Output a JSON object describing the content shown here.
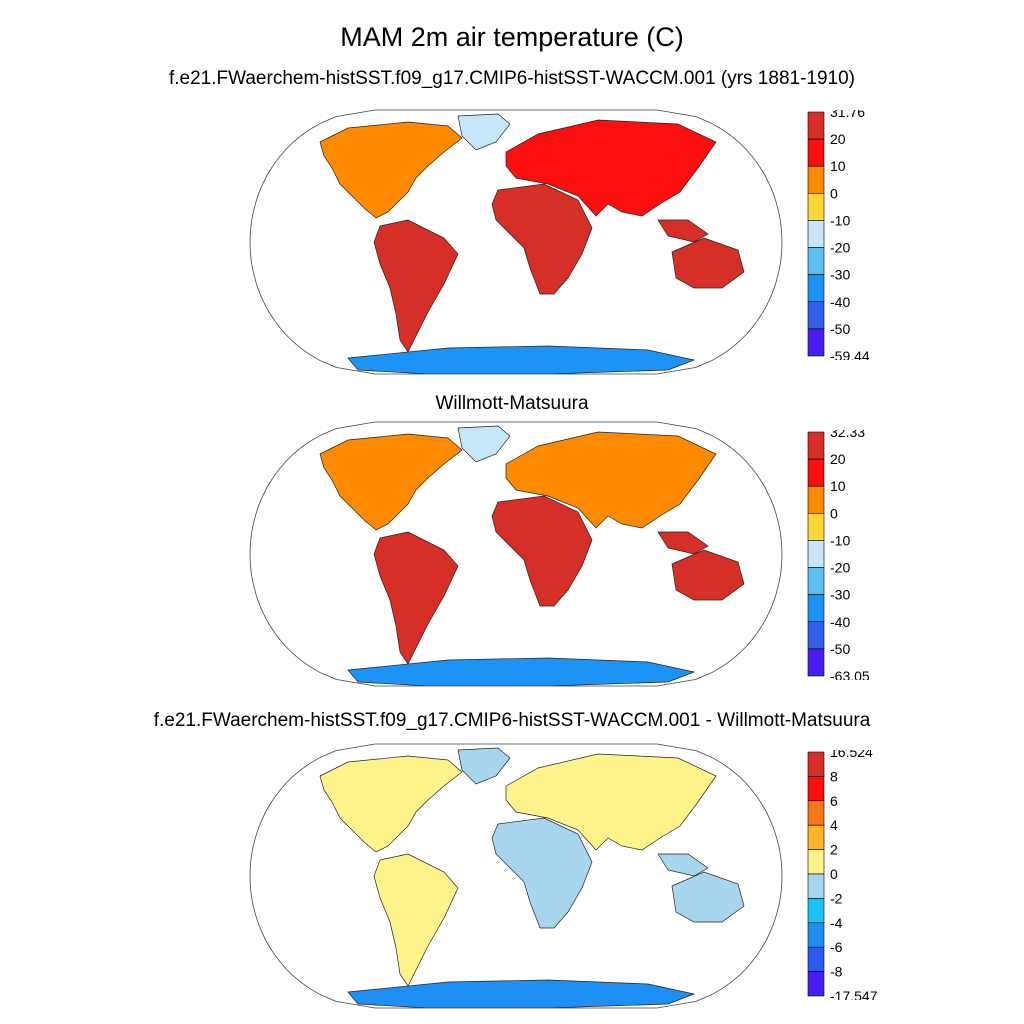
{
  "title": "MAM 2m air temperature (C)",
  "panels": [
    {
      "title": "f.e21.FWaerchem-histSST.f09_g17.CMIP6-histSST-WACCM.001 (yrs 1881-1910)"
    },
    {
      "title": "Willmott-Matsuura"
    },
    {
      "title": "f.e21.FWaerchem-histSST.f09_g17.CMIP6-histSST-WACCM.001 - Willmott-Matsuura"
    }
  ],
  "colorbars": [
    {
      "labels": [
        "31.76",
        "20",
        "10",
        "0",
        "-10",
        "-20",
        "-30",
        "-40",
        "-50",
        "-59.44"
      ],
      "colors": [
        "#d62f27",
        "#fc0f0f",
        "#fd8a00",
        "#fdd835",
        "#c6e7f8",
        "#5ec1f4",
        "#1c94f7",
        "#3360e8",
        "#4a1cf0"
      ]
    },
    {
      "labels": [
        "32.33",
        "20",
        "10",
        "0",
        "-10",
        "-20",
        "-30",
        "-40",
        "-50",
        "-63.05"
      ],
      "colors": [
        "#d62f27",
        "#fc0f0f",
        "#fd8a00",
        "#fdd835",
        "#c6e7f8",
        "#5ec1f4",
        "#1c94f7",
        "#3360e8",
        "#4a1cf0"
      ]
    },
    {
      "labels": [
        "16.524",
        "8",
        "6",
        "4",
        "2",
        "0",
        "-2",
        "-4",
        "-6",
        "-8",
        "-17.547"
      ],
      "colors": [
        "#d62f27",
        "#fc0f0f",
        "#f8761a",
        "#fdb32c",
        "#fff48c",
        "#a9d6ef",
        "#1ac4f8",
        "#1e8ff5",
        "#2c5bec",
        "#4a1cf0"
      ]
    }
  ],
  "chart_data": [
    {
      "type": "heatmap",
      "title": "f.e21.FWaerchem-histSST.f09_g17.CMIP6-histSST-WACCM.001 (yrs 1881-1910)",
      "colorbar_range": [
        -59.44,
        31.76
      ]
    },
    {
      "type": "heatmap",
      "title": "Willmott-Matsuura",
      "colorbar_range": [
        -63.05,
        32.33
      ]
    },
    {
      "type": "heatmap",
      "title": "f.e21.FWaerchem-histSST.f09_g17.CMIP6-histSST-WACCM.001 - Willmott-Matsuura",
      "colorbar_range": [
        -17.547,
        16.524
      ]
    }
  ]
}
